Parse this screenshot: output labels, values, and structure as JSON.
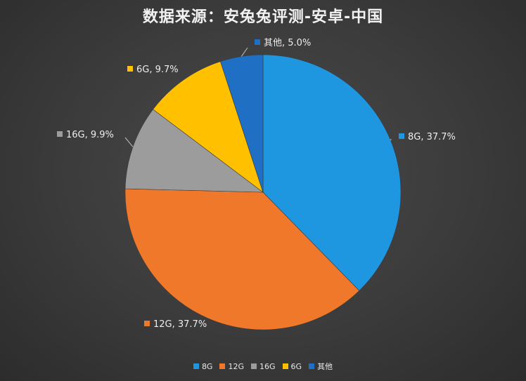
{
  "chart_data": {
    "type": "pie",
    "title": "数据来源：安兔兔评测-安卓-中国",
    "categories": [
      "8G",
      "12G",
      "16G",
      "6G",
      "其他"
    ],
    "values": [
      37.7,
      37.7,
      9.9,
      9.7,
      5.0
    ],
    "data_labels": [
      "8G, 37.7%",
      "12G, 37.7%",
      "16G, 9.9%",
      "6G, 9.7%",
      "其他, 5.0%"
    ],
    "colors": [
      "#1f97e0",
      "#f0782a",
      "#9c9c9c",
      "#ffc000",
      "#1f6fc4"
    ],
    "legend_position": "bottom"
  }
}
